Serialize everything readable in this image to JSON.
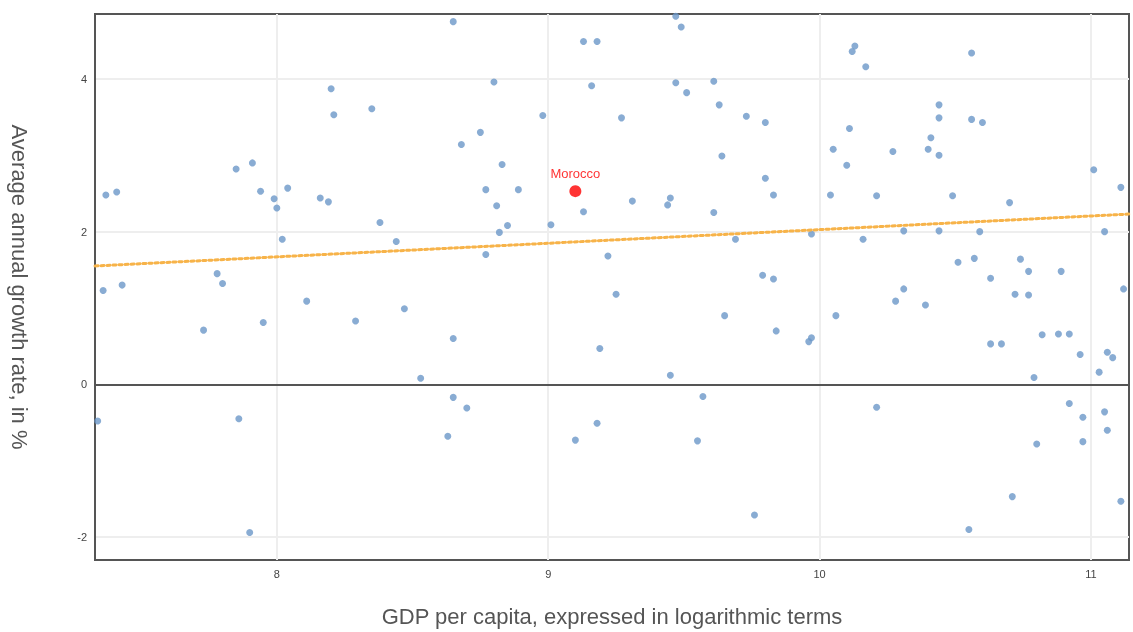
{
  "chart_data": {
    "type": "scatter",
    "xlabel": "GDP per capita, expressed in logarithmic terms",
    "ylabel": "Average annual growth rate, in %",
    "xlim": [
      7.33,
      11.14
    ],
    "xticks": [
      8,
      9,
      10,
      11
    ],
    "ylim": [
      -2.3,
      4.85
    ],
    "yticks": [
      -2,
      0,
      2,
      4
    ],
    "grid": true,
    "legend": false,
    "marker": "circle",
    "series": [
      {
        "color": "#6b97c8",
        "x": [
          7.34,
          7.36,
          7.37,
          7.41,
          7.43,
          7.73,
          7.78,
          7.8,
          7.85,
          7.86,
          7.9,
          7.91,
          7.94,
          7.95,
          7.99,
          8.0,
          8.02,
          8.04,
          8.11,
          8.16,
          8.19,
          8.2,
          8.21,
          8.29,
          8.35,
          8.38,
          8.44,
          8.47,
          8.53,
          8.63,
          8.65,
          8.65,
          8.65,
          8.68,
          8.7,
          8.75,
          8.77,
          8.77,
          8.8,
          8.81,
          8.83,
          8.82,
          8.85,
          8.89,
          8.98,
          9.01,
          9.1,
          9.13,
          9.13,
          9.16,
          9.18,
          9.18,
          9.19,
          9.22,
          9.25,
          9.27,
          9.31,
          9.44,
          9.45,
          9.45,
          9.47,
          9.47,
          9.49,
          9.51,
          9.55,
          9.57,
          9.61,
          9.61,
          9.63,
          9.64,
          9.65,
          9.69,
          9.73,
          9.76,
          9.79,
          9.8,
          9.8,
          9.83,
          9.83,
          9.84,
          9.96,
          9.97,
          9.97,
          10.04,
          10.05,
          10.06,
          10.1,
          10.11,
          10.12,
          10.13,
          10.16,
          10.17,
          10.21,
          10.21,
          10.27,
          10.28,
          10.31,
          10.31,
          10.39,
          10.4,
          10.41,
          10.44,
          10.44,
          10.44,
          10.44,
          10.49,
          10.51,
          10.55,
          10.56,
          10.56,
          10.57,
          10.59,
          10.6,
          10.63,
          10.63,
          10.67,
          10.7,
          10.71,
          10.72,
          10.74,
          10.77,
          10.77,
          10.79,
          10.8,
          10.82,
          10.88,
          10.89,
          10.92,
          10.92,
          10.96,
          10.97,
          10.97,
          11.01,
          11.03,
          11.05,
          11.05,
          11.06,
          11.06,
          11.08,
          11.11,
          11.11,
          11.12
        ],
        "values": [
          -0.48,
          1.23,
          2.48,
          2.52,
          1.3,
          0.71,
          1.45,
          1.32,
          2.82,
          -0.45,
          -1.94,
          2.9,
          2.53,
          0.81,
          2.43,
          2.31,
          1.9,
          2.57,
          1.09,
          2.44,
          2.39,
          3.87,
          3.53,
          0.83,
          3.61,
          2.12,
          1.87,
          0.99,
          0.08,
          -0.68,
          -0.17,
          4.75,
          0.6,
          3.14,
          -0.31,
          3.3,
          2.55,
          1.7,
          3.96,
          2.34,
          2.88,
          1.99,
          2.08,
          2.55,
          3.52,
          2.09,
          -0.73,
          4.49,
          2.26,
          3.91,
          4.49,
          -0.51,
          0.47,
          1.68,
          1.18,
          3.49,
          2.4,
          2.35,
          2.44,
          0.12,
          3.95,
          4.82,
          4.68,
          3.82,
          -0.74,
          -0.16,
          2.25,
          3.97,
          3.66,
          2.99,
          0.9,
          1.9,
          3.51,
          -1.71,
          1.43,
          3.43,
          2.7,
          2.48,
          1.38,
          0.7,
          0.56,
          1.97,
          0.61,
          2.48,
          3.08,
          0.9,
          2.87,
          3.35,
          4.36,
          4.43,
          1.9,
          4.16,
          2.47,
          -0.3,
          3.05,
          1.09,
          1.25,
          2.01,
          1.04,
          3.08,
          3.23,
          3.49,
          2.01,
          3.0,
          3.66,
          2.47,
          1.6,
          -1.9,
          3.47,
          4.34,
          1.65,
          2.0,
          3.43,
          0.53,
          1.39,
          0.53,
          2.38,
          -1.47,
          1.18,
          1.64,
          1.17,
          1.48,
          0.09,
          -0.78,
          0.65,
          0.66,
          1.48,
          -0.25,
          0.66,
          0.39,
          -0.43,
          -0.75,
          2.81,
          0.16,
          -0.36,
          2.0,
          0.42,
          -0.6,
          0.35,
          2.58,
          -1.53,
          1.25
        ]
      },
      {
        "name": "Morocco",
        "color": "#ff0000",
        "x": [
          9.1
        ],
        "values": [
          2.53
        ]
      },
      {
        "type": "line",
        "color": "#f7b349",
        "line_style": "dotted",
        "marker": "none",
        "x": [
          7.33,
          11.14
        ],
        "values": [
          1.55,
          2.23
        ]
      }
    ]
  }
}
